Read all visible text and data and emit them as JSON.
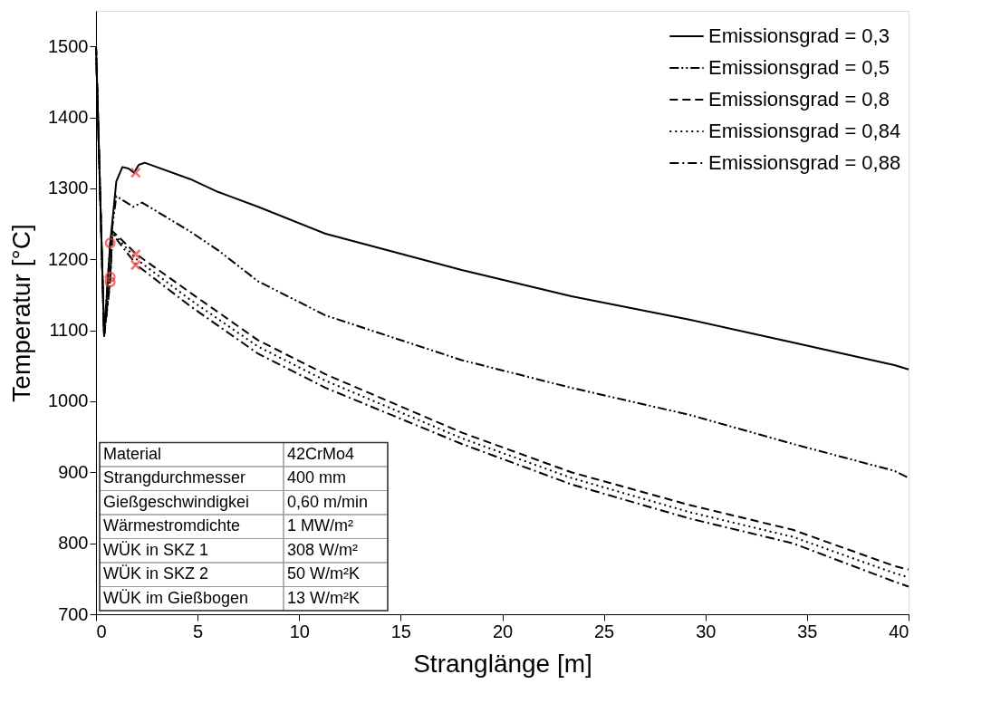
{
  "chart_data": {
    "type": "line",
    "xlabel": "Stranglänge [m]",
    "ylabel": "Temperatur [°C]",
    "xlim": [
      0,
      40
    ],
    "ylim": [
      700,
      1550
    ],
    "xticks": [
      0,
      5,
      10,
      15,
      20,
      25,
      30,
      35,
      40
    ],
    "yticks": [
      700,
      800,
      900,
      1000,
      1100,
      1200,
      1300,
      1400,
      1500
    ],
    "grid": false,
    "legend": "top right",
    "marker": "none",
    "series": [
      {
        "name": "Emissionsgrad = 0,3",
        "color": "#000000",
        "line_style": "solid",
        "x": [
          0,
          0.4,
          0.7,
          1.0,
          1.3,
          1.6,
          1.87,
          2.1,
          2.4,
          4.64,
          6.0,
          7.98,
          11.3,
          18.0,
          23.4,
          29.2,
          34.3,
          39.3,
          40
        ],
        "values": [
          1500,
          1092,
          1223,
          1310,
          1330,
          1328,
          1322,
          1333,
          1336,
          1313,
          1295,
          1274,
          1236,
          1185,
          1148,
          1115,
          1083,
          1051,
          1045
        ]
      },
      {
        "name": "Emissionsgrad = 0,5",
        "color": "#000000",
        "line_style": "dashdotdot",
        "x": [
          0,
          0.4,
          0.7,
          1.0,
          1.83,
          2.27,
          4.64,
          6.0,
          7.98,
          11.3,
          18.0,
          23.4,
          29.2,
          34.3,
          39.3,
          40
        ],
        "values": [
          1500,
          1092,
          1223,
          1289,
          1274,
          1280,
          1239,
          1213,
          1169,
          1121,
          1058,
          1019,
          981,
          940,
          902,
          892
        ]
      },
      {
        "name": "Emissionsgrad = 0,8",
        "color": "#000000",
        "line_style": "dashed",
        "x": [
          0,
          0.4,
          0.7,
          0.8,
          2.0,
          4.64,
          7.98,
          11.3,
          18.0,
          23.4,
          29.2,
          34.3,
          39.3,
          40
        ],
        "values": [
          1500,
          1092,
          1175,
          1240,
          1207,
          1153,
          1086,
          1038,
          956,
          900,
          854,
          819,
          768,
          763
        ]
      },
      {
        "name": "Emissionsgrad = 0,84",
        "color": "#000000",
        "line_style": "dotted",
        "x": [
          0,
          0.4,
          0.7,
          0.8,
          2.0,
          4.64,
          7.98,
          11.3,
          18.0,
          23.4,
          29.2,
          34.3,
          39.3,
          40
        ],
        "values": [
          1500,
          1092,
          1172,
          1238,
          1200,
          1143,
          1077,
          1029,
          948,
          892,
          844,
          809,
          758,
          752
        ]
      },
      {
        "name": "Emissionsgrad = 0,88",
        "color": "#000000",
        "line_style": "dashdot",
        "x": [
          0,
          0.4,
          0.7,
          0.8,
          2.0,
          4.64,
          7.98,
          11.3,
          18.0,
          23.4,
          29.2,
          34.3,
          39.3,
          40
        ],
        "values": [
          1500,
          1092,
          1168,
          1236,
          1192,
          1134,
          1067,
          1019,
          940,
          883,
          835,
          800,
          746,
          739
        ]
      },
      {
        "type": "scatter",
        "marker": "circle",
        "color": "#e53935",
        "x": [
          0.7,
          0.7,
          0.7
        ],
        "values": [
          1223,
          1175,
          1168
        ]
      },
      {
        "type": "scatter",
        "marker": "cross",
        "color": "#e53935",
        "x": [
          1.95,
          1.95,
          1.95
        ],
        "values": [
          1322,
          1207,
          1192
        ]
      }
    ],
    "annotations": [
      "Material",
      "42CrMo4",
      "Strangdurchmesser",
      "400 mm",
      "Gießgeschwindigkei",
      "0,60 m/min",
      "Wärmestromdichte",
      "1 MW/m²",
      "WÜK in SKZ 1",
      "308 W/m²",
      "WÜK in SKZ 2",
      "50 W/m²K",
      "WÜK im Gießbogen",
      "13 W/m²K"
    ]
  }
}
